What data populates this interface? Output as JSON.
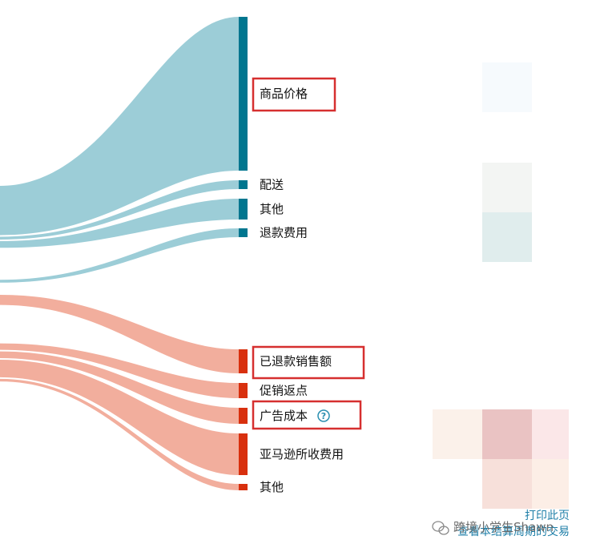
{
  "chart_data": {
    "type": "sankey",
    "colors": {
      "revenue_flow": "#9ccdd7",
      "revenue_node": "#00768f",
      "expense_flow": "#f2ae9d",
      "expense_node": "#d8300e"
    },
    "revenue_targets": [
      {
        "name": "商品价格",
        "value": 192
      },
      {
        "name": "配送",
        "value": 11
      },
      {
        "name": "其他",
        "value": 26
      },
      {
        "name": "退款费用",
        "value": 11
      }
    ],
    "expense_targets": [
      {
        "name": "已退款销售额",
        "value": 30
      },
      {
        "name": "促销返点",
        "value": 19
      },
      {
        "name": "广告成本",
        "value": 20
      },
      {
        "name": "亚马逊所收费用",
        "value": 52
      },
      {
        "name": "其他",
        "value": 8
      }
    ]
  },
  "footer": {
    "print_link": "打印此页",
    "view_link": "查看本结算周期的交易"
  },
  "watermark": "跨境小学生Shawn"
}
